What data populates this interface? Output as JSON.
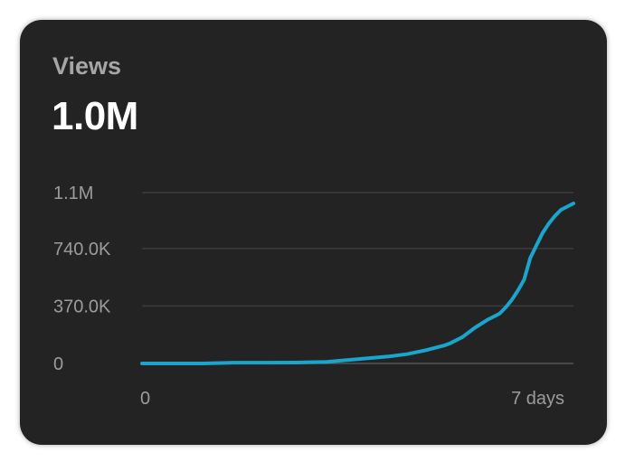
{
  "card": {
    "title": "Views",
    "value": "1.0M"
  },
  "colors": {
    "card_background": "#232323",
    "line": "#1aa5cd",
    "gridline": "#3c3c3c",
    "tick_text": "#9c9c9c",
    "title_text": "#a6a6a6",
    "value_text": "#ffffff"
  },
  "chart_data": {
    "type": "line",
    "title": "",
    "xlabel": "",
    "ylabel": "",
    "xlim": [
      0,
      7
    ],
    "ylim": [
      0,
      1100000
    ],
    "y_ticks": [
      {
        "value": 0,
        "label": "0"
      },
      {
        "value": 370000,
        "label": "370.0K"
      },
      {
        "value": 740000,
        "label": "740.0K"
      },
      {
        "value": 1100000,
        "label": "1.1M"
      }
    ],
    "x_ticks": [
      {
        "value": 0,
        "label": "0"
      },
      {
        "value": 7,
        "label": "7 days"
      }
    ],
    "grid": true,
    "series": [
      {
        "x": [
          0,
          0.5,
          1.0,
          1.5,
          2.0,
          2.5,
          3.0,
          3.5,
          4.0,
          4.3,
          4.6,
          4.9,
          5.0,
          5.2,
          5.4,
          5.6,
          5.8,
          5.9,
          6.0,
          6.1,
          6.2,
          6.3,
          6.4,
          6.5,
          6.6,
          6.7,
          6.8,
          6.9,
          7.0
        ],
        "y": [
          0,
          0,
          0,
          5000,
          5000,
          6000,
          10000,
          28000,
          45000,
          60000,
          85000,
          115000,
          130000,
          170000,
          230000,
          280000,
          320000,
          360000,
          410000,
          470000,
          540000,
          680000,
          760000,
          840000,
          900000,
          950000,
          990000,
          1010000,
          1030000
        ]
      }
    ]
  }
}
